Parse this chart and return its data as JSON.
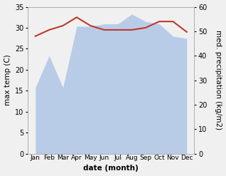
{
  "months": [
    "Jan",
    "Feb",
    "Mar",
    "Apr",
    "May",
    "Jun",
    "Jul",
    "Aug",
    "Sep",
    "Oct",
    "Nov",
    "Dec"
  ],
  "temp": [
    28.0,
    29.5,
    30.5,
    32.5,
    30.5,
    29.5,
    29.5,
    29.5,
    30.0,
    31.5,
    31.5,
    29.0
  ],
  "precip": [
    27,
    40,
    27,
    52,
    52,
    53,
    53,
    57,
    54,
    53,
    48,
    47
  ],
  "temp_color": "#c0392b",
  "precip_fill_color": "#b8cce8",
  "left_ylim": [
    0,
    35
  ],
  "right_ylim": [
    0,
    60
  ],
  "left_yticks": [
    0,
    5,
    10,
    15,
    20,
    25,
    30,
    35
  ],
  "right_yticks": [
    0,
    10,
    20,
    30,
    40,
    50,
    60
  ],
  "xlabel": "date (month)",
  "ylabel_left": "max temp (C)",
  "ylabel_right": "med. precipitation (kg/m2)",
  "bg_color": "#f0f0f0",
  "label_fontsize": 7.5,
  "tick_fontsize": 7
}
